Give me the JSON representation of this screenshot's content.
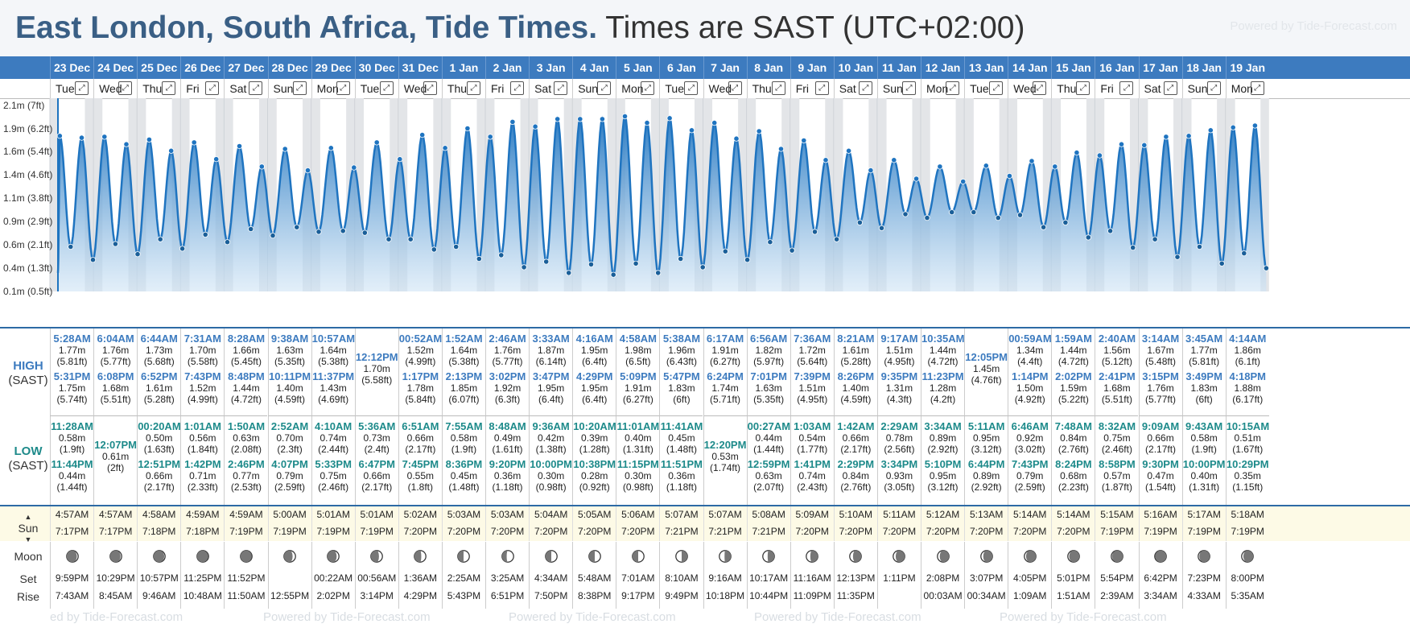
{
  "header": {
    "title": "East London, South Africa, Tide Times.",
    "timezone": "Times are SAST (UTC+02:00)",
    "powered": "Powered by Tide-Forecast.com"
  },
  "axis_labels": [
    "2.1m (7ft)",
    "1.9m (6.2ft)",
    "1.6m (5.4ft)",
    "1.4m (4.6ft)",
    "1.1m (3.8ft)",
    "0.9m (2.9ft)",
    "0.6m (2.1ft)",
    "0.4m (1.3ft)",
    "0.1m (0.5ft)"
  ],
  "row_labels": {
    "high": "HIGH",
    "low": "LOW",
    "tz": "(SAST)",
    "sun": "Sun",
    "moon": "Moon",
    "set": "Set",
    "rise": "Rise"
  },
  "expand_glyph": "⤢",
  "bottom_powered": [
    "ed by Tide-Forecast.com",
    "Powered by Tide-Forecast.com",
    "Powered by Tide-Forecast.com",
    "Powered by Tide-Forecast.com",
    "Powered by Tide-Forecast.com"
  ],
  "colors": {
    "header_blue": "#3d7bbf",
    "high_text": "#3d7bbf",
    "low_text": "#1d8a8a",
    "curve": "#1f74c0"
  },
  "days": [
    {
      "date": "23 Dec",
      "dow": "Tue",
      "high": [
        {
          "t": "5:28AM",
          "m": "1.77m",
          "f": "(5.81ft)"
        },
        {
          "t": "5:31PM",
          "m": "1.75m",
          "f": "(5.74ft)"
        }
      ],
      "low": [
        {
          "t": "11:28AM",
          "m": "0.58m",
          "f": "(1.9ft)"
        },
        {
          "t": "11:44PM",
          "m": "0.44m",
          "f": "(1.44ft)"
        }
      ],
      "sunrise": "4:57AM",
      "sunset": "7:17PM",
      "moonset": "9:59PM",
      "moonrise": "7:43AM",
      "phase": 0.88
    },
    {
      "date": "24 Dec",
      "dow": "Wed",
      "high": [
        {
          "t": "6:04AM",
          "m": "1.76m",
          "f": "(5.77ft)"
        },
        {
          "t": "6:08PM",
          "m": "1.68m",
          "f": "(5.51ft)"
        }
      ],
      "low": [
        {
          "t": "12:07PM",
          "m": "0.61m",
          "f": "(2ft)"
        }
      ],
      "sunrise": "4:57AM",
      "sunset": "7:17PM",
      "moonset": "10:29PM",
      "moonrise": "8:45AM",
      "phase": 0.9
    },
    {
      "date": "25 Dec",
      "dow": "Thu",
      "high": [
        {
          "t": "6:44AM",
          "m": "1.73m",
          "f": "(5.68ft)"
        },
        {
          "t": "6:52PM",
          "m": "1.61m",
          "f": "(5.28ft)"
        }
      ],
      "low": [
        {
          "t": "00:20AM",
          "m": "0.50m",
          "f": "(1.63ft)"
        },
        {
          "t": "12:51PM",
          "m": "0.66m",
          "f": "(2.17ft)"
        }
      ],
      "sunrise": "4:58AM",
      "sunset": "7:18PM",
      "moonset": "10:57PM",
      "moonrise": "9:46AM",
      "phase": 0.92
    },
    {
      "date": "26 Dec",
      "dow": "Fri",
      "high": [
        {
          "t": "7:31AM",
          "m": "1.70m",
          "f": "(5.58ft)"
        },
        {
          "t": "7:43PM",
          "m": "1.52m",
          "f": "(4.99ft)"
        }
      ],
      "low": [
        {
          "t": "1:01AM",
          "m": "0.56m",
          "f": "(1.84ft)"
        },
        {
          "t": "1:42PM",
          "m": "0.71m",
          "f": "(2.33ft)"
        }
      ],
      "sunrise": "4:59AM",
      "sunset": "7:18PM",
      "moonset": "11:25PM",
      "moonrise": "10:48AM",
      "phase": 0.95
    },
    {
      "date": "27 Dec",
      "dow": "Sat",
      "high": [
        {
          "t": "8:28AM",
          "m": "1.66m",
          "f": "(5.45ft)"
        },
        {
          "t": "8:48PM",
          "m": "1.44m",
          "f": "(4.72ft)"
        }
      ],
      "low": [
        {
          "t": "1:50AM",
          "m": "0.63m",
          "f": "(2.08ft)"
        },
        {
          "t": "2:46PM",
          "m": "0.77m",
          "f": "(2.53ft)"
        }
      ],
      "sunrise": "4:59AM",
      "sunset": "7:19PM",
      "moonset": "11:52PM",
      "moonrise": "11:50AM",
      "phase": 0.97
    },
    {
      "date": "28 Dec",
      "dow": "Sun",
      "high": [
        {
          "t": "9:38AM",
          "m": "1.63m",
          "f": "(5.35ft)"
        },
        {
          "t": "10:11PM",
          "m": "1.40m",
          "f": "(4.59ft)"
        }
      ],
      "low": [
        {
          "t": "2:52AM",
          "m": "0.70m",
          "f": "(2.3ft)"
        },
        {
          "t": "4:07PM",
          "m": "0.79m",
          "f": "(2.59ft)"
        }
      ],
      "sunrise": "5:00AM",
      "sunset": "7:19PM",
      "moonset": "",
      "moonrise": "12:55PM",
      "phase": 0.75
    },
    {
      "date": "29 Dec",
      "dow": "Mon",
      "high": [
        {
          "t": "10:57AM",
          "m": "1.64m",
          "f": "(5.38ft)"
        },
        {
          "t": "11:37PM",
          "m": "1.43m",
          "f": "(4.69ft)"
        }
      ],
      "low": [
        {
          "t": "4:10AM",
          "m": "0.74m",
          "f": "(2.44ft)"
        },
        {
          "t": "5:33PM",
          "m": "0.75m",
          "f": "(2.46ft)"
        }
      ],
      "sunrise": "5:01AM",
      "sunset": "7:19PM",
      "moonset": "00:22AM",
      "moonrise": "2:02PM",
      "phase": 0.8
    },
    {
      "date": "30 Dec",
      "dow": "Tue",
      "high": [
        {
          "t": "12:12PM",
          "m": "1.70m",
          "f": "(5.58ft)"
        }
      ],
      "low": [
        {
          "t": "5:36AM",
          "m": "0.73m",
          "f": "(2.4ft)"
        },
        {
          "t": "6:47PM",
          "m": "0.66m",
          "f": "(2.17ft)"
        }
      ],
      "sunrise": "5:01AM",
      "sunset": "7:19PM",
      "moonset": "00:56AM",
      "moonrise": "3:14PM",
      "phase": 0.7
    },
    {
      "date": "31 Dec",
      "dow": "Wed",
      "high": [
        {
          "t": "00:52AM",
          "m": "1.52m",
          "f": "(4.99ft)"
        },
        {
          "t": "1:17PM",
          "m": "1.78m",
          "f": "(5.84ft)"
        }
      ],
      "low": [
        {
          "t": "6:51AM",
          "m": "0.66m",
          "f": "(2.17ft)"
        },
        {
          "t": "7:45PM",
          "m": "0.55m",
          "f": "(1.8ft)"
        }
      ],
      "sunrise": "5:02AM",
      "sunset": "7:20PM",
      "moonset": "1:36AM",
      "moonrise": "4:29PM",
      "phase": 0.6
    },
    {
      "date": "1 Jan",
      "dow": "Thu",
      "high": [
        {
          "t": "1:52AM",
          "m": "1.64m",
          "f": "(5.38ft)"
        },
        {
          "t": "2:13PM",
          "m": "1.85m",
          "f": "(6.07ft)"
        }
      ],
      "low": [
        {
          "t": "7:55AM",
          "m": "0.58m",
          "f": "(1.9ft)"
        },
        {
          "t": "8:36PM",
          "m": "0.45m",
          "f": "(1.48ft)"
        }
      ],
      "sunrise": "5:03AM",
      "sunset": "7:20PM",
      "moonset": "2:25AM",
      "moonrise": "5:43PM",
      "phase": 0.5
    },
    {
      "date": "2 Jan",
      "dow": "Fri",
      "high": [
        {
          "t": "2:46AM",
          "m": "1.76m",
          "f": "(5.77ft)"
        },
        {
          "t": "3:02PM",
          "m": "1.92m",
          "f": "(6.3ft)"
        }
      ],
      "low": [
        {
          "t": "8:48AM",
          "m": "0.49m",
          "f": "(1.61ft)"
        },
        {
          "t": "9:20PM",
          "m": "0.36m",
          "f": "(1.18ft)"
        }
      ],
      "sunrise": "5:03AM",
      "sunset": "7:20PM",
      "moonset": "3:25AM",
      "moonrise": "6:51PM",
      "phase": 0.4
    },
    {
      "date": "3 Jan",
      "dow": "Sat",
      "high": [
        {
          "t": "3:33AM",
          "m": "1.87m",
          "f": "(6.14ft)"
        },
        {
          "t": "3:47PM",
          "m": "1.95m",
          "f": "(6.4ft)"
        }
      ],
      "low": [
        {
          "t": "9:36AM",
          "m": "0.42m",
          "f": "(1.38ft)"
        },
        {
          "t": "10:00PM",
          "m": "0.30m",
          "f": "(0.98ft)"
        }
      ],
      "sunrise": "5:04AM",
      "sunset": "7:20PM",
      "moonset": "4:34AM",
      "moonrise": "7:50PM",
      "phase": 0.5
    },
    {
      "date": "4 Jan",
      "dow": "Sun",
      "high": [
        {
          "t": "4:16AM",
          "m": "1.95m",
          "f": "(6.4ft)"
        },
        {
          "t": "4:29PM",
          "m": "1.95m",
          "f": "(6.4ft)"
        }
      ],
      "low": [
        {
          "t": "10:20AM",
          "m": "0.39m",
          "f": "(1.28ft)"
        },
        {
          "t": "10:38PM",
          "m": "0.28m",
          "f": "(0.92ft)"
        }
      ],
      "sunrise": "5:05AM",
      "sunset": "7:20PM",
      "moonset": "5:48AM",
      "moonrise": "8:38PM",
      "phase": 0.5
    },
    {
      "date": "5 Jan",
      "dow": "Mon",
      "high": [
        {
          "t": "4:58AM",
          "m": "1.98m",
          "f": "(6.5ft)"
        },
        {
          "t": "5:09PM",
          "m": "1.91m",
          "f": "(6.27ft)"
        }
      ],
      "low": [
        {
          "t": "11:01AM",
          "m": "0.40m",
          "f": "(1.31ft)"
        },
        {
          "t": "11:15PM",
          "m": "0.30m",
          "f": "(0.98ft)"
        }
      ],
      "sunrise": "5:06AM",
      "sunset": "7:20PM",
      "moonset": "7:01AM",
      "moonrise": "9:17PM",
      "phase": 0.5
    },
    {
      "date": "6 Jan",
      "dow": "Tue",
      "high": [
        {
          "t": "5:38AM",
          "m": "1.96m",
          "f": "(6.43ft)"
        },
        {
          "t": "5:47PM",
          "m": "1.83m",
          "f": "(6ft)"
        }
      ],
      "low": [
        {
          "t": "11:41AM",
          "m": "0.45m",
          "f": "(1.48ft)"
        },
        {
          "t": "11:51PM",
          "m": "0.36m",
          "f": "(1.18ft)"
        }
      ],
      "sunrise": "5:07AM",
      "sunset": "7:21PM",
      "moonset": "8:10AM",
      "moonrise": "9:49PM",
      "phase": 0.5
    },
    {
      "date": "7 Jan",
      "dow": "Wed",
      "high": [
        {
          "t": "6:17AM",
          "m": "1.91m",
          "f": "(6.27ft)"
        },
        {
          "t": "6:24PM",
          "m": "1.74m",
          "f": "(5.71ft)"
        }
      ],
      "low": [
        {
          "t": "12:20PM",
          "m": "0.53m",
          "f": "(1.74ft)"
        }
      ],
      "sunrise": "5:07AM",
      "sunset": "7:21PM",
      "moonset": "9:16AM",
      "moonrise": "10:18PM",
      "phase": 0.45
    },
    {
      "date": "8 Jan",
      "dow": "Thu",
      "high": [
        {
          "t": "6:56AM",
          "m": "1.82m",
          "f": "(5.97ft)"
        },
        {
          "t": "7:01PM",
          "m": "1.63m",
          "f": "(5.35ft)"
        }
      ],
      "low": [
        {
          "t": "00:27AM",
          "m": "0.44m",
          "f": "(1.44ft)"
        },
        {
          "t": "12:59PM",
          "m": "0.63m",
          "f": "(2.07ft)"
        }
      ],
      "sunrise": "5:08AM",
      "sunset": "7:21PM",
      "moonset": "10:17AM",
      "moonrise": "10:44PM",
      "phase": 0.42
    },
    {
      "date": "9 Jan",
      "dow": "Fri",
      "high": [
        {
          "t": "7:36AM",
          "m": "1.72m",
          "f": "(5.64ft)"
        },
        {
          "t": "7:39PM",
          "m": "1.51m",
          "f": "(4.95ft)"
        }
      ],
      "low": [
        {
          "t": "1:03AM",
          "m": "0.54m",
          "f": "(1.77ft)"
        },
        {
          "t": "1:41PM",
          "m": "0.74m",
          "f": "(2.43ft)"
        }
      ],
      "sunrise": "5:09AM",
      "sunset": "7:20PM",
      "moonset": "11:16AM",
      "moonrise": "11:09PM",
      "phase": 0.35
    },
    {
      "date": "10 Jan",
      "dow": "Sat",
      "high": [
        {
          "t": "8:21AM",
          "m": "1.61m",
          "f": "(5.28ft)"
        },
        {
          "t": "8:26PM",
          "m": "1.40m",
          "f": "(4.59ft)"
        }
      ],
      "low": [
        {
          "t": "1:42AM",
          "m": "0.66m",
          "f": "(2.17ft)"
        },
        {
          "t": "2:29PM",
          "m": "0.84m",
          "f": "(2.76ft)"
        }
      ],
      "sunrise": "5:10AM",
      "sunset": "7:20PM",
      "moonset": "12:13PM",
      "moonrise": "11:35PM",
      "phase": 0.28
    },
    {
      "date": "11 Jan",
      "dow": "Sun",
      "high": [
        {
          "t": "9:17AM",
          "m": "1.51m",
          "f": "(4.95ft)"
        },
        {
          "t": "9:35PM",
          "m": "1.31m",
          "f": "(4.3ft)"
        }
      ],
      "low": [
        {
          "t": "2:29AM",
          "m": "0.78m",
          "f": "(2.56ft)"
        },
        {
          "t": "3:34PM",
          "m": "0.93m",
          "f": "(3.05ft)"
        }
      ],
      "sunrise": "5:11AM",
      "sunset": "7:20PM",
      "moonset": "1:11PM",
      "moonrise": "",
      "phase": 0.22
    },
    {
      "date": "12 Jan",
      "dow": "Mon",
      "high": [
        {
          "t": "10:35AM",
          "m": "1.44m",
          "f": "(4.72ft)"
        },
        {
          "t": "11:23PM",
          "m": "1.28m",
          "f": "(4.2ft)"
        }
      ],
      "low": [
        {
          "t": "3:34AM",
          "m": "0.89m",
          "f": "(2.92ft)"
        },
        {
          "t": "5:10PM",
          "m": "0.95m",
          "f": "(3.12ft)"
        }
      ],
      "sunrise": "5:12AM",
      "sunset": "7:20PM",
      "moonset": "2:08PM",
      "moonrise": "00:03AM",
      "phase": 0.2
    },
    {
      "date": "13 Jan",
      "dow": "Tue",
      "high": [
        {
          "t": "12:05PM",
          "m": "1.45m",
          "f": "(4.76ft)"
        }
      ],
      "low": [
        {
          "t": "5:11AM",
          "m": "0.95m",
          "f": "(3.12ft)"
        },
        {
          "t": "6:44PM",
          "m": "0.89m",
          "f": "(2.92ft)"
        }
      ],
      "sunrise": "5:13AM",
      "sunset": "7:20PM",
      "moonset": "3:07PM",
      "moonrise": "00:34AM",
      "phase": 0.2
    },
    {
      "date": "14 Jan",
      "dow": "Wed",
      "high": [
        {
          "t": "00:59AM",
          "m": "1.34m",
          "f": "(4.4ft)"
        },
        {
          "t": "1:14PM",
          "m": "1.50m",
          "f": "(4.92ft)"
        }
      ],
      "low": [
        {
          "t": "6:46AM",
          "m": "0.92m",
          "f": "(3.02ft)"
        },
        {
          "t": "7:43PM",
          "m": "0.79m",
          "f": "(2.59ft)"
        }
      ],
      "sunrise": "5:14AM",
      "sunset": "7:20PM",
      "moonset": "4:05PM",
      "moonrise": "1:09AM",
      "phase": 0.15
    },
    {
      "date": "15 Jan",
      "dow": "Thu",
      "high": [
        {
          "t": "1:59AM",
          "m": "1.44m",
          "f": "(4.72ft)"
        },
        {
          "t": "2:02PM",
          "m": "1.59m",
          "f": "(5.22ft)"
        }
      ],
      "low": [
        {
          "t": "7:48AM",
          "m": "0.84m",
          "f": "(2.76ft)"
        },
        {
          "t": "8:24PM",
          "m": "0.68m",
          "f": "(2.23ft)"
        }
      ],
      "sunrise": "5:14AM",
      "sunset": "7:20PM",
      "moonset": "5:01PM",
      "moonrise": "1:51AM",
      "phase": 0.12
    },
    {
      "date": "16 Jan",
      "dow": "Fri",
      "high": [
        {
          "t": "2:40AM",
          "m": "1.56m",
          "f": "(5.12ft)"
        },
        {
          "t": "2:41PM",
          "m": "1.68m",
          "f": "(5.51ft)"
        }
      ],
      "low": [
        {
          "t": "8:32AM",
          "m": "0.75m",
          "f": "(2.46ft)"
        },
        {
          "t": "8:58PM",
          "m": "0.57m",
          "f": "(1.87ft)"
        }
      ],
      "sunrise": "5:15AM",
      "sunset": "7:19PM",
      "moonset": "5:54PM",
      "moonrise": "2:39AM",
      "phase": 0.08
    },
    {
      "date": "17 Jan",
      "dow": "Sat",
      "high": [
        {
          "t": "3:14AM",
          "m": "1.67m",
          "f": "(5.48ft)"
        },
        {
          "t": "3:15PM",
          "m": "1.76m",
          "f": "(5.77ft)"
        }
      ],
      "low": [
        {
          "t": "9:09AM",
          "m": "0.66m",
          "f": "(2.17ft)"
        },
        {
          "t": "9:30PM",
          "m": "0.47m",
          "f": "(1.54ft)"
        }
      ],
      "sunrise": "5:16AM",
      "sunset": "7:19PM",
      "moonset": "6:42PM",
      "moonrise": "3:34AM",
      "phase": 0.05
    },
    {
      "date": "18 Jan",
      "dow": "Sun",
      "high": [
        {
          "t": "3:45AM",
          "m": "1.77m",
          "f": "(5.81ft)"
        },
        {
          "t": "3:49PM",
          "m": "1.83m",
          "f": "(6ft)"
        }
      ],
      "low": [
        {
          "t": "9:43AM",
          "m": "0.58m",
          "f": "(1.9ft)"
        },
        {
          "t": "10:00PM",
          "m": "0.40m",
          "f": "(1.31ft)"
        }
      ],
      "sunrise": "5:17AM",
      "sunset": "7:19PM",
      "moonset": "7:23PM",
      "moonrise": "4:33AM",
      "phase": 0.1
    },
    {
      "date": "19 Jan",
      "dow": "Mon",
      "high": [
        {
          "t": "4:14AM",
          "m": "1.86m",
          "f": "(6.1ft)"
        },
        {
          "t": "4:18PM",
          "m": "1.88m",
          "f": "(6.17ft)"
        }
      ],
      "low": [
        {
          "t": "10:15AM",
          "m": "0.51m",
          "f": "(1.67ft)"
        },
        {
          "t": "10:29PM",
          "m": "0.35m",
          "f": "(1.15ft)"
        }
      ],
      "sunrise": "5:18AM",
      "sunset": "7:19PM",
      "moonset": "8:00PM",
      "moonrise": "5:35AM",
      "phase": 0.15
    }
  ],
  "chart_data": {
    "type": "area",
    "title": "",
    "ylabel": "",
    "xlabel": "",
    "ylim": [
      0.1,
      2.2
    ],
    "series": [
      {
        "name": "",
        "values_source": "days.high / days.low"
      }
    ]
  }
}
